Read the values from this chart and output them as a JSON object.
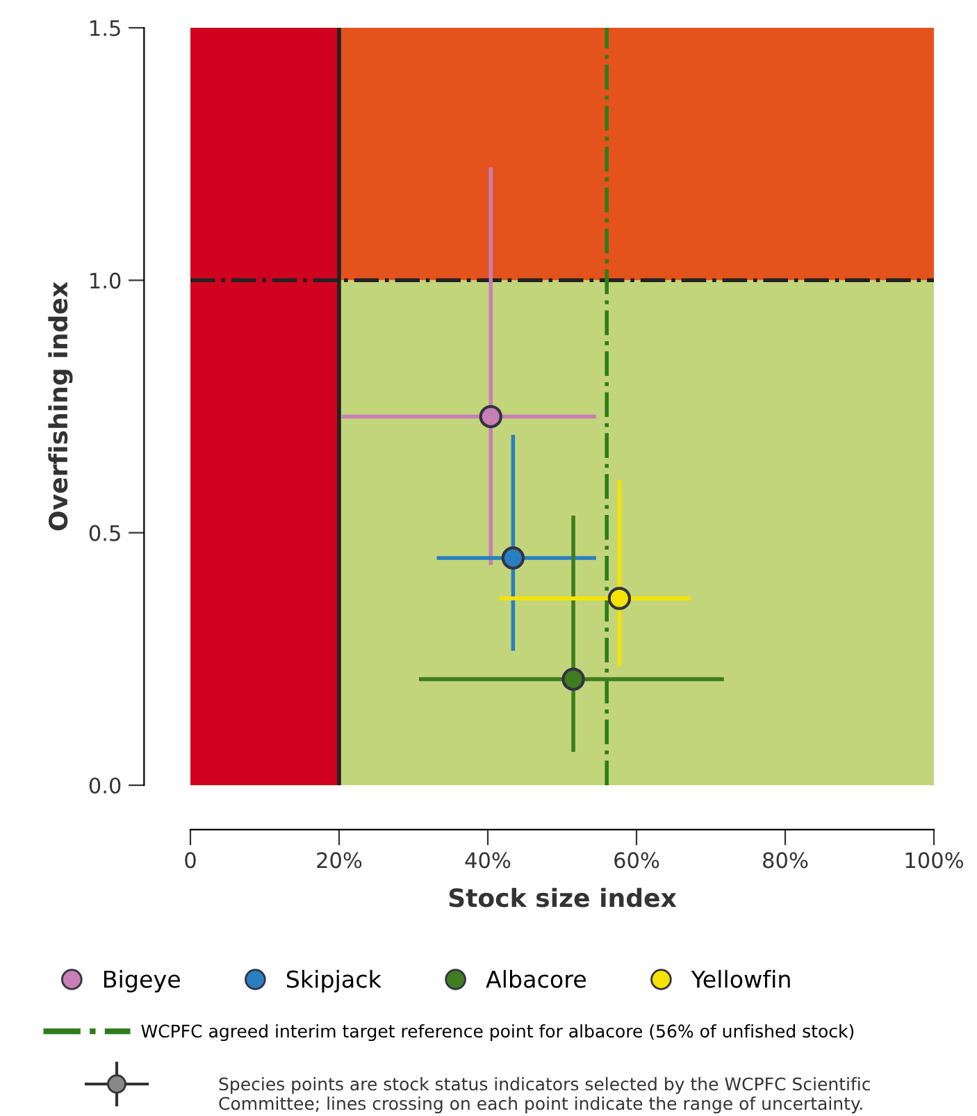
{
  "chart_data": {
    "type": "scatter",
    "xlabel": "Stock size index",
    "ylabel": "Overfishing index",
    "xlim": [
      0,
      100
    ],
    "ylim": [
      0,
      1.5
    ],
    "xticks": [
      0,
      {
        "value": 20,
        "label": "20%"
      },
      {
        "value": 40,
        "label": "40%"
      },
      {
        "value": 60,
        "label": "60%"
      },
      {
        "value": 80,
        "label": "80%"
      },
      {
        "value": 100,
        "label": "100%"
      }
    ],
    "yticks": [
      {
        "value": 0,
        "label": "0.0"
      },
      {
        "value": 0.5,
        "label": "0.5"
      },
      {
        "value": 1,
        "label": "1.0"
      },
      {
        "value": 1.5,
        "label": "1.5"
      }
    ],
    "marker": "circle",
    "grid": false,
    "legend": "bottom",
    "series": [
      {
        "name": "Bigeye",
        "color": "#c77fb5",
        "x": [
          40.4
        ],
        "values": [
          0.73
        ],
        "xerrors": [
          [
            20.6,
            54.3
          ]
        ],
        "errors": [
          [
            0.44,
            1.22
          ]
        ]
      },
      {
        "name": "Skipjack",
        "color": "#2a7fc0",
        "x": [
          43.4
        ],
        "values": [
          0.45
        ],
        "xerrors": [
          [
            33.4,
            54.3
          ]
        ],
        "errors": [
          [
            0.27,
            0.69
          ]
        ]
      },
      {
        "name": "Albacore",
        "color": "#3f7d20",
        "x": [
          51.5
        ],
        "values": [
          0.21
        ],
        "xerrors": [
          [
            31.0,
            71.5
          ]
        ],
        "errors": [
          [
            0.07,
            0.53
          ]
        ]
      },
      {
        "name": "Yellowfin",
        "color": "#f5e400",
        "x": [
          57.7
        ],
        "values": [
          0.37
        ],
        "xerrors": [
          [
            41.8,
            67.0
          ]
        ],
        "errors": [
          [
            0.24,
            0.6
          ]
        ]
      }
    ],
    "bands": [
      {
        "axis": "y",
        "from": 0,
        "to": 1,
        "color": "#c3d57a"
      },
      {
        "axis": "y",
        "from": 1,
        "to": 1.5,
        "color": "#e4531c"
      },
      {
        "axis": "x",
        "from": 0,
        "to": 20,
        "color": "#d0021f"
      }
    ],
    "ref_lines": [
      {
        "axis": "x",
        "value": 20,
        "color": "#222222",
        "line_style": "solid"
      },
      {
        "axis": "y",
        "value": 1,
        "color": "#222222",
        "line_style": "dashdot"
      },
      {
        "axis": "x",
        "value": 56,
        "color": "#2e7d1a",
        "line_style": "dashdot",
        "label": "WCPFC agreed interim target reference point for albacore (56% of unfished stock)"
      }
    ],
    "annotations": [
      "Species points are stock status indicators selected by the WCPFC Scientific Committee; lines crossing on each point indicate the range of uncertainty."
    ]
  }
}
